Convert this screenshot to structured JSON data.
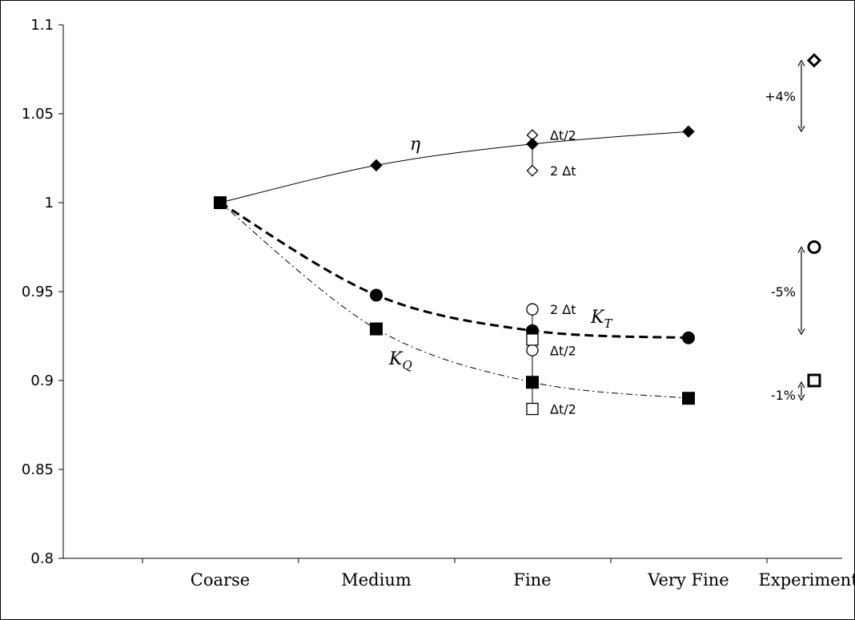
{
  "chart_data": {
    "type": "line",
    "categories": [
      "Coarse",
      "Medium",
      "Fine",
      "Very Fine",
      "Experiments"
    ],
    "ylim": [
      0.8,
      1.1
    ],
    "yticks": [
      "0.8",
      "0.85",
      "0.9",
      "0.95",
      "1",
      "1.05",
      "1.1"
    ],
    "grid": false,
    "series": [
      {
        "name": "η",
        "marker": "filled-diamond",
        "line": "solid",
        "values": [
          1.0,
          1.021,
          1.033,
          1.04,
          null
        ],
        "timestep_points": [
          {
            "category": "Fine",
            "value": 1.038,
            "label": "Δt/2"
          },
          {
            "category": "Fine",
            "value": 1.033,
            "label": ""
          },
          {
            "category": "Fine",
            "value": 1.018,
            "label": "2 Δt"
          }
        ],
        "experiment": {
          "value": 1.08,
          "difference": "+4%"
        }
      },
      {
        "name": "K_T",
        "marker": "filled-circle",
        "line": "dashed",
        "values": [
          1.0,
          0.948,
          0.928,
          0.924,
          null
        ],
        "timestep_points": [
          {
            "category": "Fine",
            "value": 0.94,
            "label": "2 Δt"
          },
          {
            "category": "Fine",
            "value": 0.928,
            "label": ""
          },
          {
            "category": "Fine",
            "value": 0.917,
            "label": "Δt/2"
          }
        ],
        "experiment": {
          "value": 0.975,
          "difference": "-5%"
        }
      },
      {
        "name": "K_Q",
        "marker": "filled-square",
        "line": "dash-dot",
        "values": [
          1.0,
          0.929,
          0.899,
          0.89,
          null
        ],
        "timestep_points": [
          {
            "category": "Fine",
            "value": 0.923,
            "label": ""
          },
          {
            "category": "Fine",
            "value": 0.899,
            "label": ""
          },
          {
            "category": "Fine",
            "value": 0.884,
            "label": "Δt/2"
          }
        ],
        "experiment": {
          "value": 0.9,
          "difference": "-1%"
        }
      }
    ],
    "series_labels": {
      "eta": {
        "main": "η",
        "sub": ""
      },
      "kt": {
        "main": "K",
        "sub": "T"
      },
      "kq": {
        "main": "K",
        "sub": "Q"
      }
    }
  }
}
